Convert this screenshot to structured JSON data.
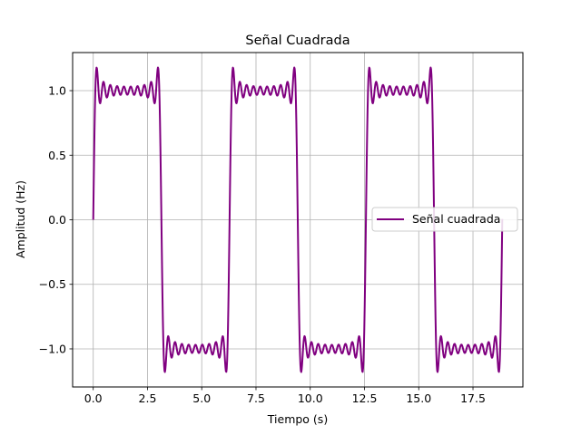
{
  "chart_data": {
    "type": "line",
    "title": "Señal Cuadrada",
    "xlabel": "Tiempo (s)",
    "ylabel": "Amplitud (Hz)",
    "xlim": [
      -0.95,
      19.8
    ],
    "ylim": [
      -1.295,
      1.295
    ],
    "xticks": [
      0.0,
      2.5,
      5.0,
      7.5,
      10.0,
      12.5,
      15.0,
      17.5
    ],
    "xtick_labels": [
      "0.0",
      "2.5",
      "5.0",
      "7.5",
      "10.0",
      "12.5",
      "15.0",
      "17.5"
    ],
    "yticks": [
      -1.0,
      -0.5,
      0.0,
      0.5,
      1.0
    ],
    "ytick_labels": [
      "−1.0",
      "−0.5",
      "0.0",
      "0.5",
      "1.0"
    ],
    "grid": true,
    "legend_position": "center-right",
    "series": [
      {
        "name": "Señal cuadrada",
        "color": "#800080",
        "function": "fourier_square_wave",
        "harmonics": 10,
        "x_range": [
          0,
          18.85
        ],
        "samples": 1000
      }
    ]
  }
}
